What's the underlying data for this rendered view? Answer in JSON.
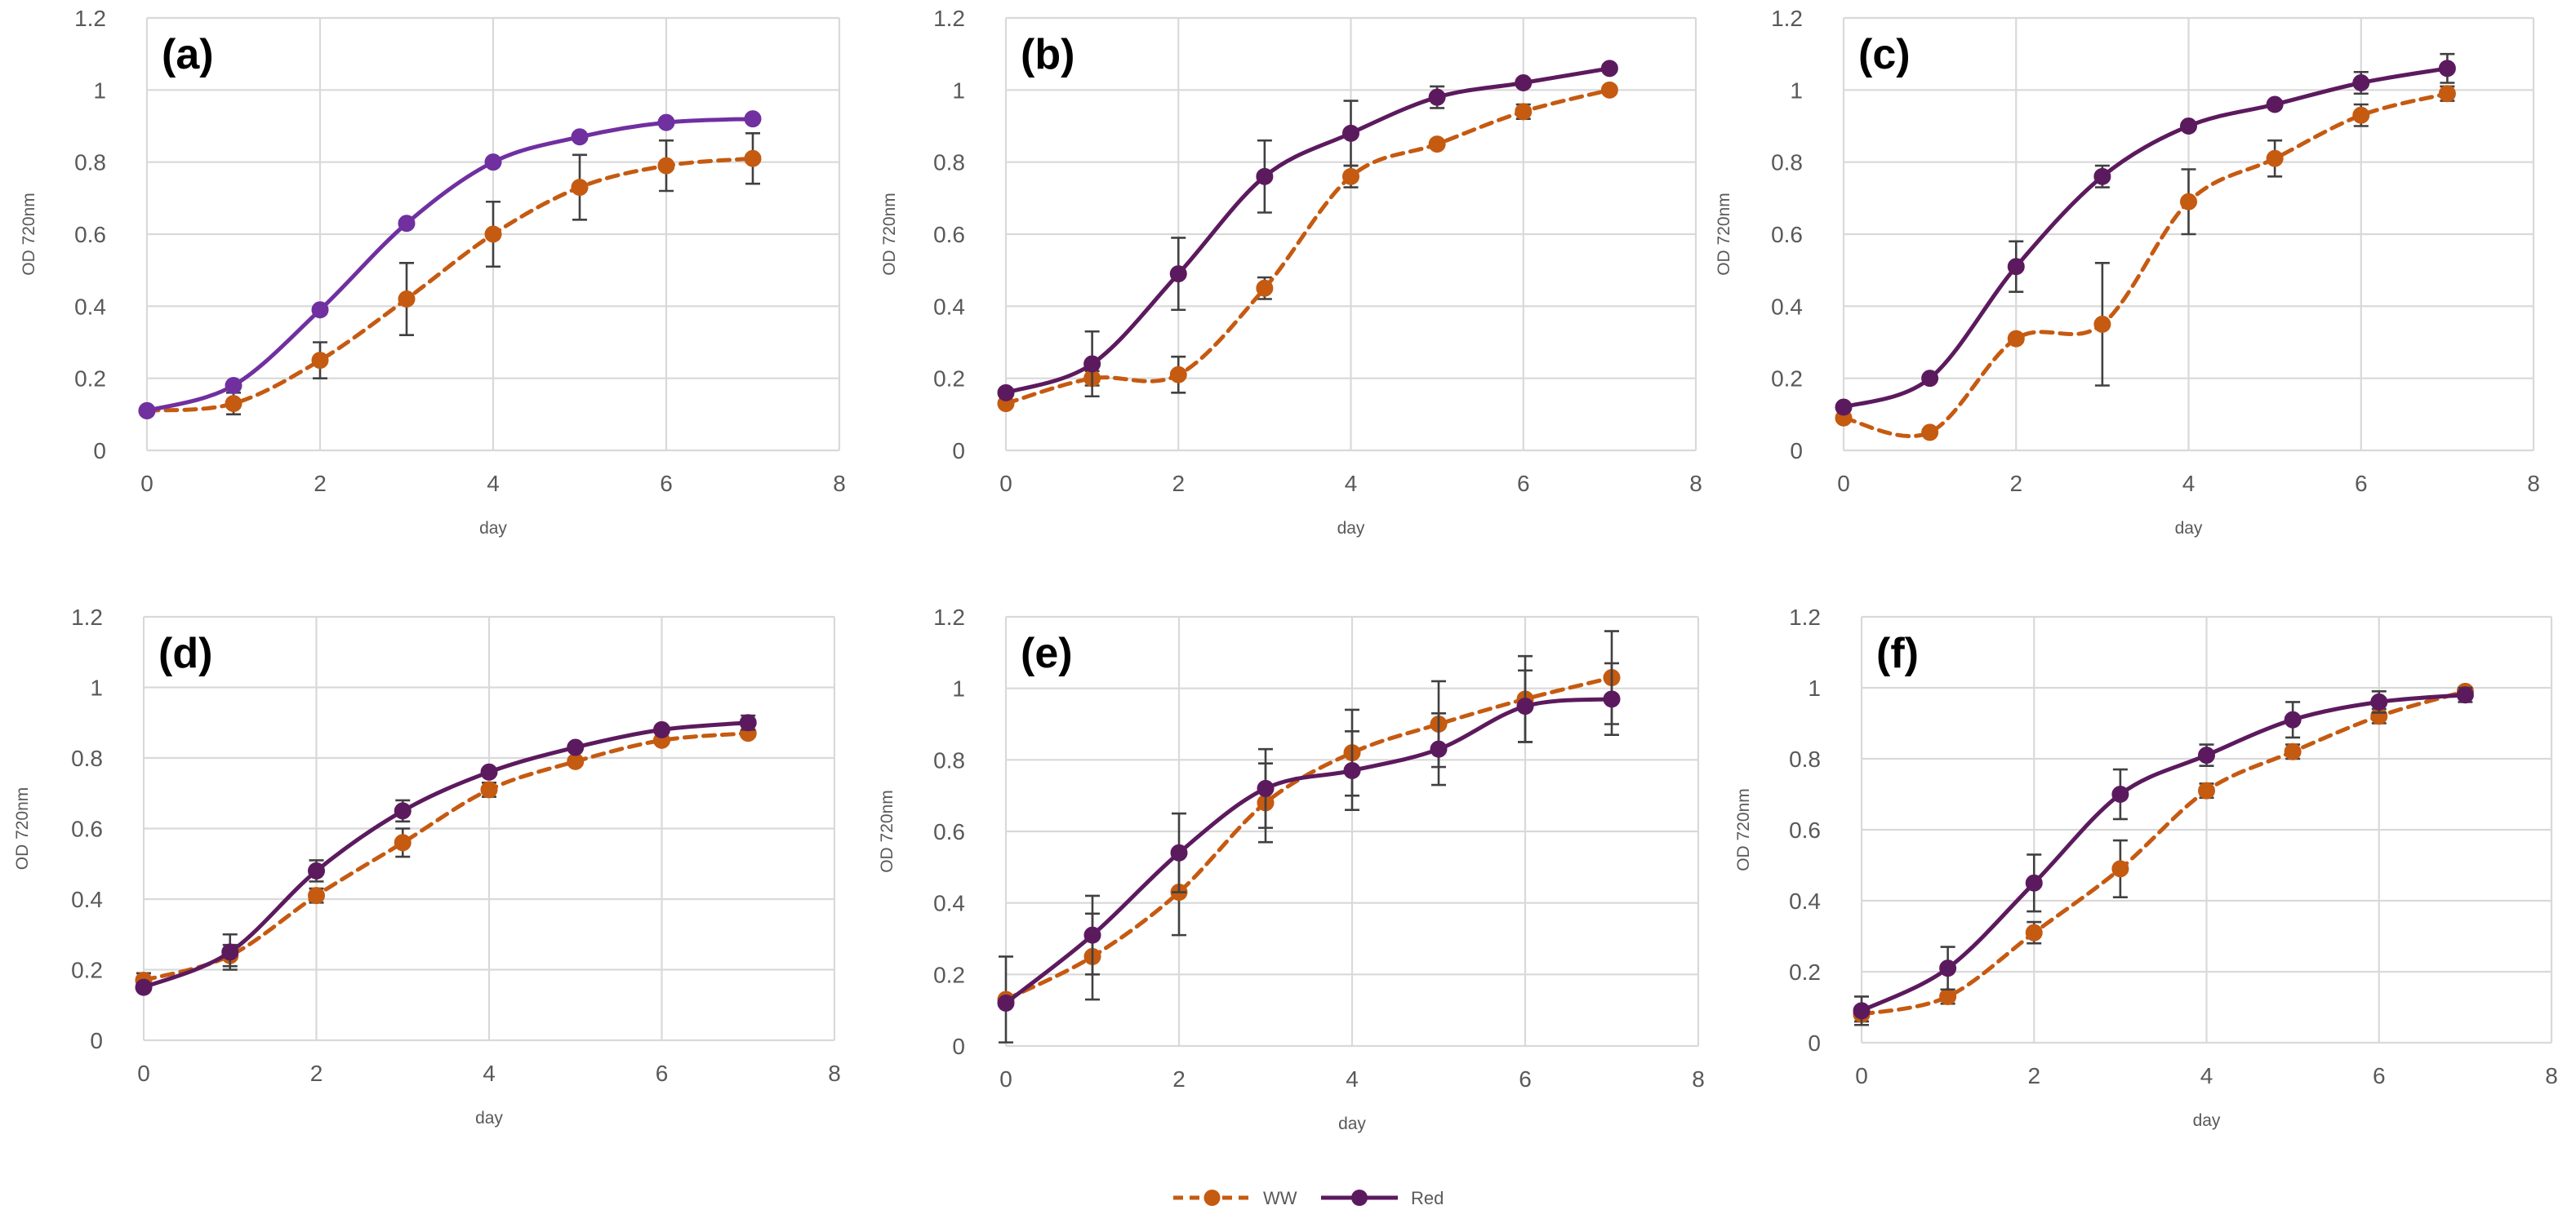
{
  "colors": {
    "ww": "#c55a11",
    "red": "#5c1a5e",
    "red_panel_a": "#7030a0"
  },
  "legend": [
    {
      "key": "ww",
      "label": "WW"
    },
    {
      "key": "red",
      "label": "Red"
    }
  ],
  "chart_data": [
    {
      "type": "line",
      "label": "(a)",
      "xlabel": "day",
      "ylabel": "OD 720nm",
      "xlim": [
        0,
        8
      ],
      "ylim": [
        0,
        1.2
      ],
      "xticks": [
        "0",
        "2",
        "4",
        "6",
        "8"
      ],
      "yticks": [
        "0",
        "0.2",
        "0.4",
        "0.6",
        "0.8",
        "1",
        "1.2"
      ],
      "series": [
        {
          "name": "WW",
          "x": [
            0,
            1,
            2,
            3,
            4,
            5,
            6,
            7
          ],
          "y": [
            0.11,
            0.13,
            0.25,
            0.42,
            0.6,
            0.73,
            0.79,
            0.81
          ],
          "err": [
            0.01,
            0.03,
            0.05,
            0.1,
            0.09,
            0.09,
            0.07,
            0.07
          ]
        },
        {
          "name": "Red",
          "x": [
            0,
            1,
            2,
            3,
            4,
            5,
            6,
            7
          ],
          "y": [
            0.11,
            0.18,
            0.39,
            0.63,
            0.8,
            0.87,
            0.91,
            0.92
          ],
          "err": [
            0,
            0,
            0,
            0,
            0,
            0,
            0,
            0
          ]
        }
      ]
    },
    {
      "type": "line",
      "label": "(b)",
      "xlabel": "day",
      "ylabel": "OD 720nm",
      "xlim": [
        0,
        8
      ],
      "ylim": [
        0,
        1.2
      ],
      "xticks": [
        "0",
        "2",
        "4",
        "6",
        "8"
      ],
      "yticks": [
        "0",
        "0.2",
        "0.4",
        "0.6",
        "0.8",
        "1",
        "1.2"
      ],
      "series": [
        {
          "name": "WW",
          "x": [
            0,
            1,
            2,
            3,
            4,
            5,
            6,
            7
          ],
          "y": [
            0.13,
            0.2,
            0.21,
            0.45,
            0.76,
            0.85,
            0.94,
            1.0
          ],
          "err": [
            0,
            0.02,
            0.05,
            0.03,
            0.03,
            0.01,
            0.02,
            0.01
          ]
        },
        {
          "name": "Red",
          "x": [
            0,
            1,
            2,
            3,
            4,
            5,
            6,
            7
          ],
          "y": [
            0.16,
            0.24,
            0.49,
            0.76,
            0.88,
            0.98,
            1.02,
            1.06
          ],
          "err": [
            0,
            0.09,
            0.1,
            0.1,
            0.09,
            0.03,
            0.01,
            0.01
          ]
        }
      ]
    },
    {
      "type": "line",
      "label": "(c)",
      "xlabel": "day",
      "ylabel": "OD 720nm",
      "xlim": [
        0,
        8
      ],
      "ylim": [
        0,
        1.2
      ],
      "xticks": [
        "0",
        "2",
        "4",
        "6",
        "8"
      ],
      "yticks": [
        "0",
        "0.2",
        "0.4",
        "0.6",
        "0.8",
        "1",
        "1.2"
      ],
      "series": [
        {
          "name": "WW",
          "x": [
            0,
            1,
            2,
            3,
            4,
            5,
            6,
            7
          ],
          "y": [
            0.09,
            0.05,
            0.31,
            0.35,
            0.69,
            0.81,
            0.93,
            0.99
          ],
          "err": [
            0,
            0,
            0.01,
            0.17,
            0.09,
            0.05,
            0.03,
            0.02
          ]
        },
        {
          "name": "Red",
          "x": [
            0,
            1,
            2,
            3,
            4,
            5,
            6,
            7
          ],
          "y": [
            0.12,
            0.2,
            0.51,
            0.76,
            0.9,
            0.96,
            1.02,
            1.06
          ],
          "err": [
            0,
            0,
            0.07,
            0.03,
            0,
            0,
            0.03,
            0.04
          ]
        }
      ]
    },
    {
      "type": "line",
      "label": "(d)",
      "xlabel": "day",
      "ylabel": "OD 720nm",
      "xlim": [
        0,
        8
      ],
      "ylim": [
        0,
        1.2
      ],
      "xticks": [
        "0",
        "2",
        "4",
        "6",
        "8"
      ],
      "yticks": [
        "0",
        "0.2",
        "0.4",
        "0.6",
        "0.8",
        "1",
        "1.2"
      ],
      "series": [
        {
          "name": "WW",
          "x": [
            0,
            1,
            2,
            3,
            4,
            5,
            6,
            7
          ],
          "y": [
            0.17,
            0.24,
            0.41,
            0.56,
            0.71,
            0.79,
            0.85,
            0.87
          ],
          "err": [
            0.02,
            0.03,
            0.02,
            0.04,
            0.02,
            0.01,
            0.01,
            0.01
          ]
        },
        {
          "name": "Red",
          "x": [
            0,
            1,
            2,
            3,
            4,
            5,
            6,
            7
          ],
          "y": [
            0.15,
            0.25,
            0.48,
            0.65,
            0.76,
            0.83,
            0.88,
            0.9
          ],
          "err": [
            0,
            0.05,
            0.03,
            0.03,
            0,
            0,
            0,
            0.02
          ]
        }
      ]
    },
    {
      "type": "line",
      "label": "(e)",
      "xlabel": "day",
      "ylabel": "OD 720nm",
      "xlim": [
        0,
        8
      ],
      "ylim": [
        0,
        1.2
      ],
      "xticks": [
        "0",
        "2",
        "4",
        "6",
        "8"
      ],
      "yticks": [
        "0",
        "0.2",
        "0.4",
        "0.6",
        "0.8",
        "1",
        "1.2"
      ],
      "series": [
        {
          "name": "WW",
          "x": [
            0,
            1,
            2,
            3,
            4,
            5,
            6,
            7
          ],
          "y": [
            0.13,
            0.25,
            0.43,
            0.68,
            0.82,
            0.9,
            0.97,
            1.03
          ],
          "err": [
            0.12,
            0.12,
            0.12,
            0.11,
            0.12,
            0.12,
            0.12,
            0.13
          ]
        },
        {
          "name": "Red",
          "x": [
            0,
            1,
            2,
            3,
            4,
            5,
            6,
            7
          ],
          "y": [
            0.12,
            0.31,
            0.54,
            0.72,
            0.77,
            0.83,
            0.95,
            0.97
          ],
          "err": [
            0,
            0.11,
            0.11,
            0.11,
            0.11,
            0.1,
            0.1,
            0.1
          ]
        }
      ]
    },
    {
      "type": "line",
      "label": "(f)",
      "xlabel": "day",
      "ylabel": "OD 720nm",
      "xlim": [
        0,
        8
      ],
      "ylim": [
        0,
        1.2
      ],
      "xticks": [
        "0",
        "2",
        "4",
        "6",
        "8"
      ],
      "yticks": [
        "0",
        "0.2",
        "0.4",
        "0.6",
        "0.8",
        "1",
        "1.2"
      ],
      "series": [
        {
          "name": "WW",
          "x": [
            0,
            1,
            2,
            3,
            4,
            5,
            6,
            7
          ],
          "y": [
            0.08,
            0.13,
            0.31,
            0.49,
            0.71,
            0.82,
            0.92,
            0.99
          ],
          "err": [
            0.02,
            0.02,
            0.03,
            0.08,
            0.02,
            0.02,
            0.02,
            0.01
          ]
        },
        {
          "name": "Red",
          "x": [
            0,
            1,
            2,
            3,
            4,
            5,
            6,
            7
          ],
          "y": [
            0.09,
            0.21,
            0.45,
            0.7,
            0.81,
            0.91,
            0.96,
            0.98
          ],
          "err": [
            0.04,
            0.06,
            0.08,
            0.07,
            0.03,
            0.05,
            0.03,
            0.02
          ]
        }
      ]
    }
  ]
}
